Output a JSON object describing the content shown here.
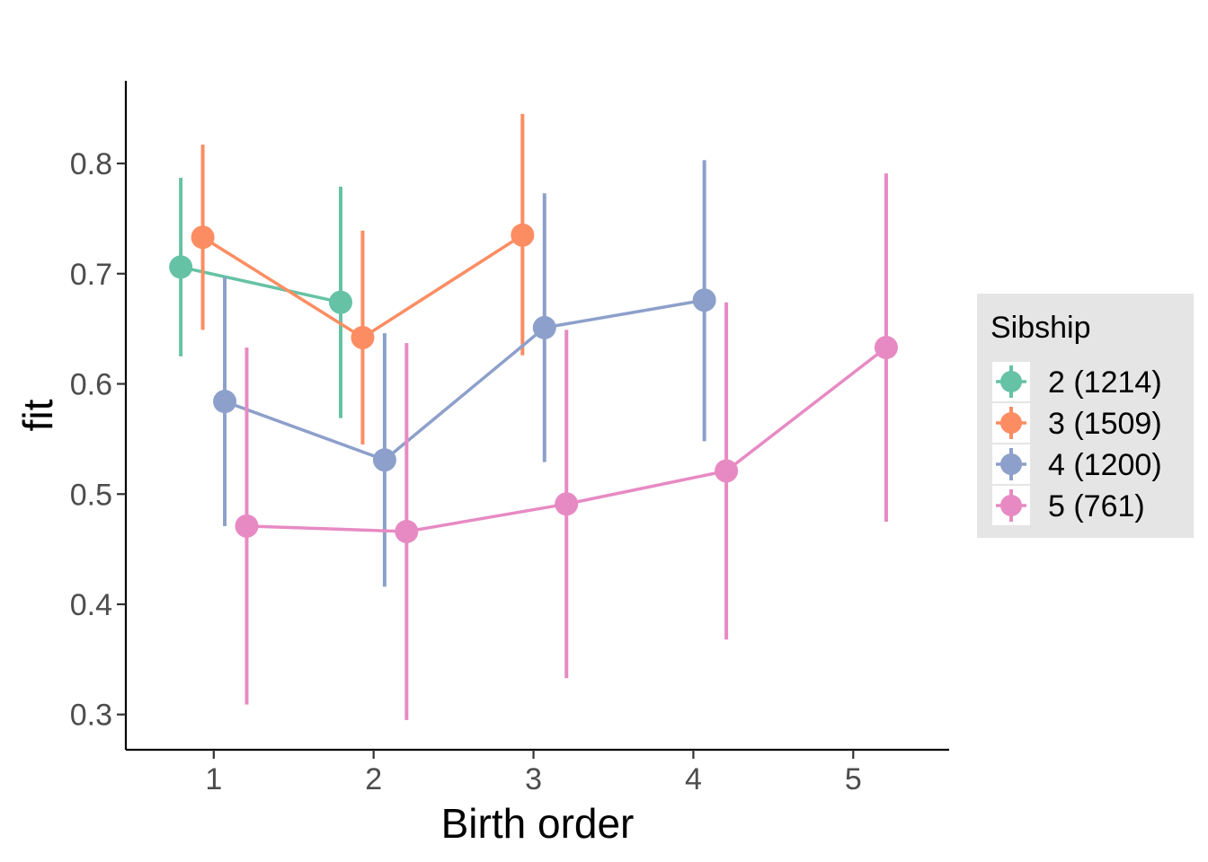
{
  "chart_data": {
    "type": "scatter",
    "title": "",
    "xlabel": "Birth order",
    "ylabel": "fit",
    "xlim": [
      0.45,
      5.6
    ],
    "ylim": [
      0.268,
      0.875
    ],
    "x_ticks": [
      "1",
      "2",
      "3",
      "4",
      "5"
    ],
    "y_ticks": [
      "0.3",
      "0.4",
      "0.5",
      "0.6",
      "0.7",
      "0.8"
    ],
    "grid": false,
    "legend": {
      "title": "Sibship",
      "placement": "right"
    },
    "series": [
      {
        "name": "2 (1214)",
        "color": "#66c2a5",
        "points": [
          {
            "x": 1,
            "fit": 0.706,
            "lower": 0.625,
            "upper": 0.787
          },
          {
            "x": 2,
            "fit": 0.674,
            "lower": 0.569,
            "upper": 0.779
          }
        ]
      },
      {
        "name": "3 (1509)",
        "color": "#fc8d62",
        "points": [
          {
            "x": 1,
            "fit": 0.733,
            "lower": 0.649,
            "upper": 0.817
          },
          {
            "x": 2,
            "fit": 0.642,
            "lower": 0.545,
            "upper": 0.739
          },
          {
            "x": 3,
            "fit": 0.735,
            "lower": 0.626,
            "upper": 0.845
          }
        ]
      },
      {
        "name": "4 (1200)",
        "color": "#8da0cb",
        "points": [
          {
            "x": 1,
            "fit": 0.584,
            "lower": 0.471,
            "upper": 0.697
          },
          {
            "x": 2,
            "fit": 0.531,
            "lower": 0.416,
            "upper": 0.646
          },
          {
            "x": 3,
            "fit": 0.651,
            "lower": 0.529,
            "upper": 0.773
          },
          {
            "x": 4,
            "fit": 0.676,
            "lower": 0.548,
            "upper": 0.803
          }
        ]
      },
      {
        "name": "5 (761)",
        "color": "#e78ac3",
        "points": [
          {
            "x": 1,
            "fit": 0.471,
            "lower": 0.309,
            "upper": 0.633
          },
          {
            "x": 2,
            "fit": 0.466,
            "lower": 0.295,
            "upper": 0.637
          },
          {
            "x": 3,
            "fit": 0.491,
            "lower": 0.333,
            "upper": 0.649
          },
          {
            "x": 4,
            "fit": 0.521,
            "lower": 0.368,
            "upper": 0.674
          },
          {
            "x": 5,
            "fit": 0.633,
            "lower": 0.475,
            "upper": 0.791
          }
        ]
      }
    ]
  }
}
